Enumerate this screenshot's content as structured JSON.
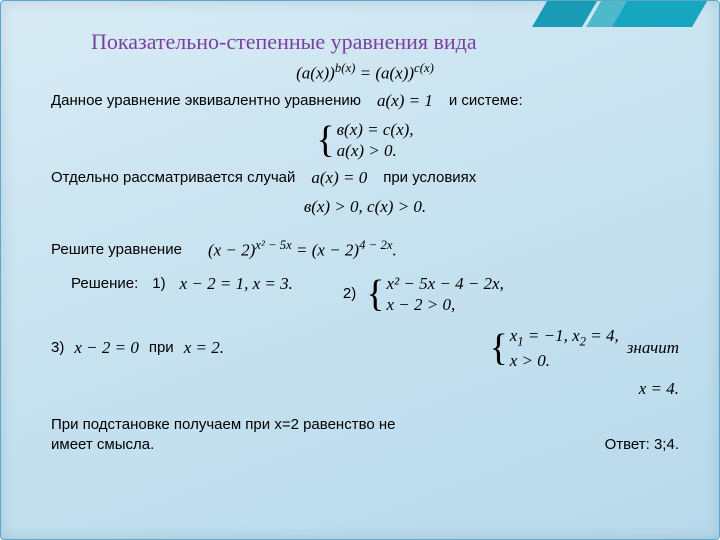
{
  "title": "Показательно-степенные уравнения вида",
  "eq_form": "(a(x))<sup>b(x)</sup> = (a(x))<sup>c(x)</sup>",
  "line1a": "Данное уравнение эквивалентно уравнению",
  "eq_ax1": "a(x) = 1",
  "line1b": "и системе:",
  "sys1_top": "в(x) = с(x),",
  "sys1_bot": "a(x) > 0.",
  "line2": "Отдельно рассматривается случай",
  "eq_ax0": "a(x) = 0",
  "line2b": "при условиях",
  "cond": "в(x) > 0, c(x) > 0.",
  "solve_label": "Решите уравнение",
  "eq_main": "(x − 2)<sup>x² − 5x</sup> = (x − 2)<sup>4 − 2x</sup>.",
  "solution_label": "Решение:",
  "step1label": "1)",
  "step1": "x − 2 = 1,  x = 3.",
  "step2label": "2)",
  "sys2_top": "x² − 5x − 4 − 2x,",
  "sys2_bot": "x − 2 > 0,",
  "sys3_top": "x<sub>1</sub> = −1, x<sub>2</sub> = 4,",
  "sys3_bot": "x > 0.",
  "znachit": "значит",
  "result_x": "x = 4.",
  "step3label": "3)",
  "step3a": "x − 2 = 0",
  "step3pri": "при",
  "step3b": "x = 2.",
  "subst": "При подстановке получаем при х=2 равенство не имеет смысла.",
  "answer": "Ответ: 3;4.",
  "colors": {
    "title": "#7a3fa0",
    "bg1": "#d9ecf5",
    "bg2": "#b8daec",
    "border": "#5aa9c9"
  }
}
